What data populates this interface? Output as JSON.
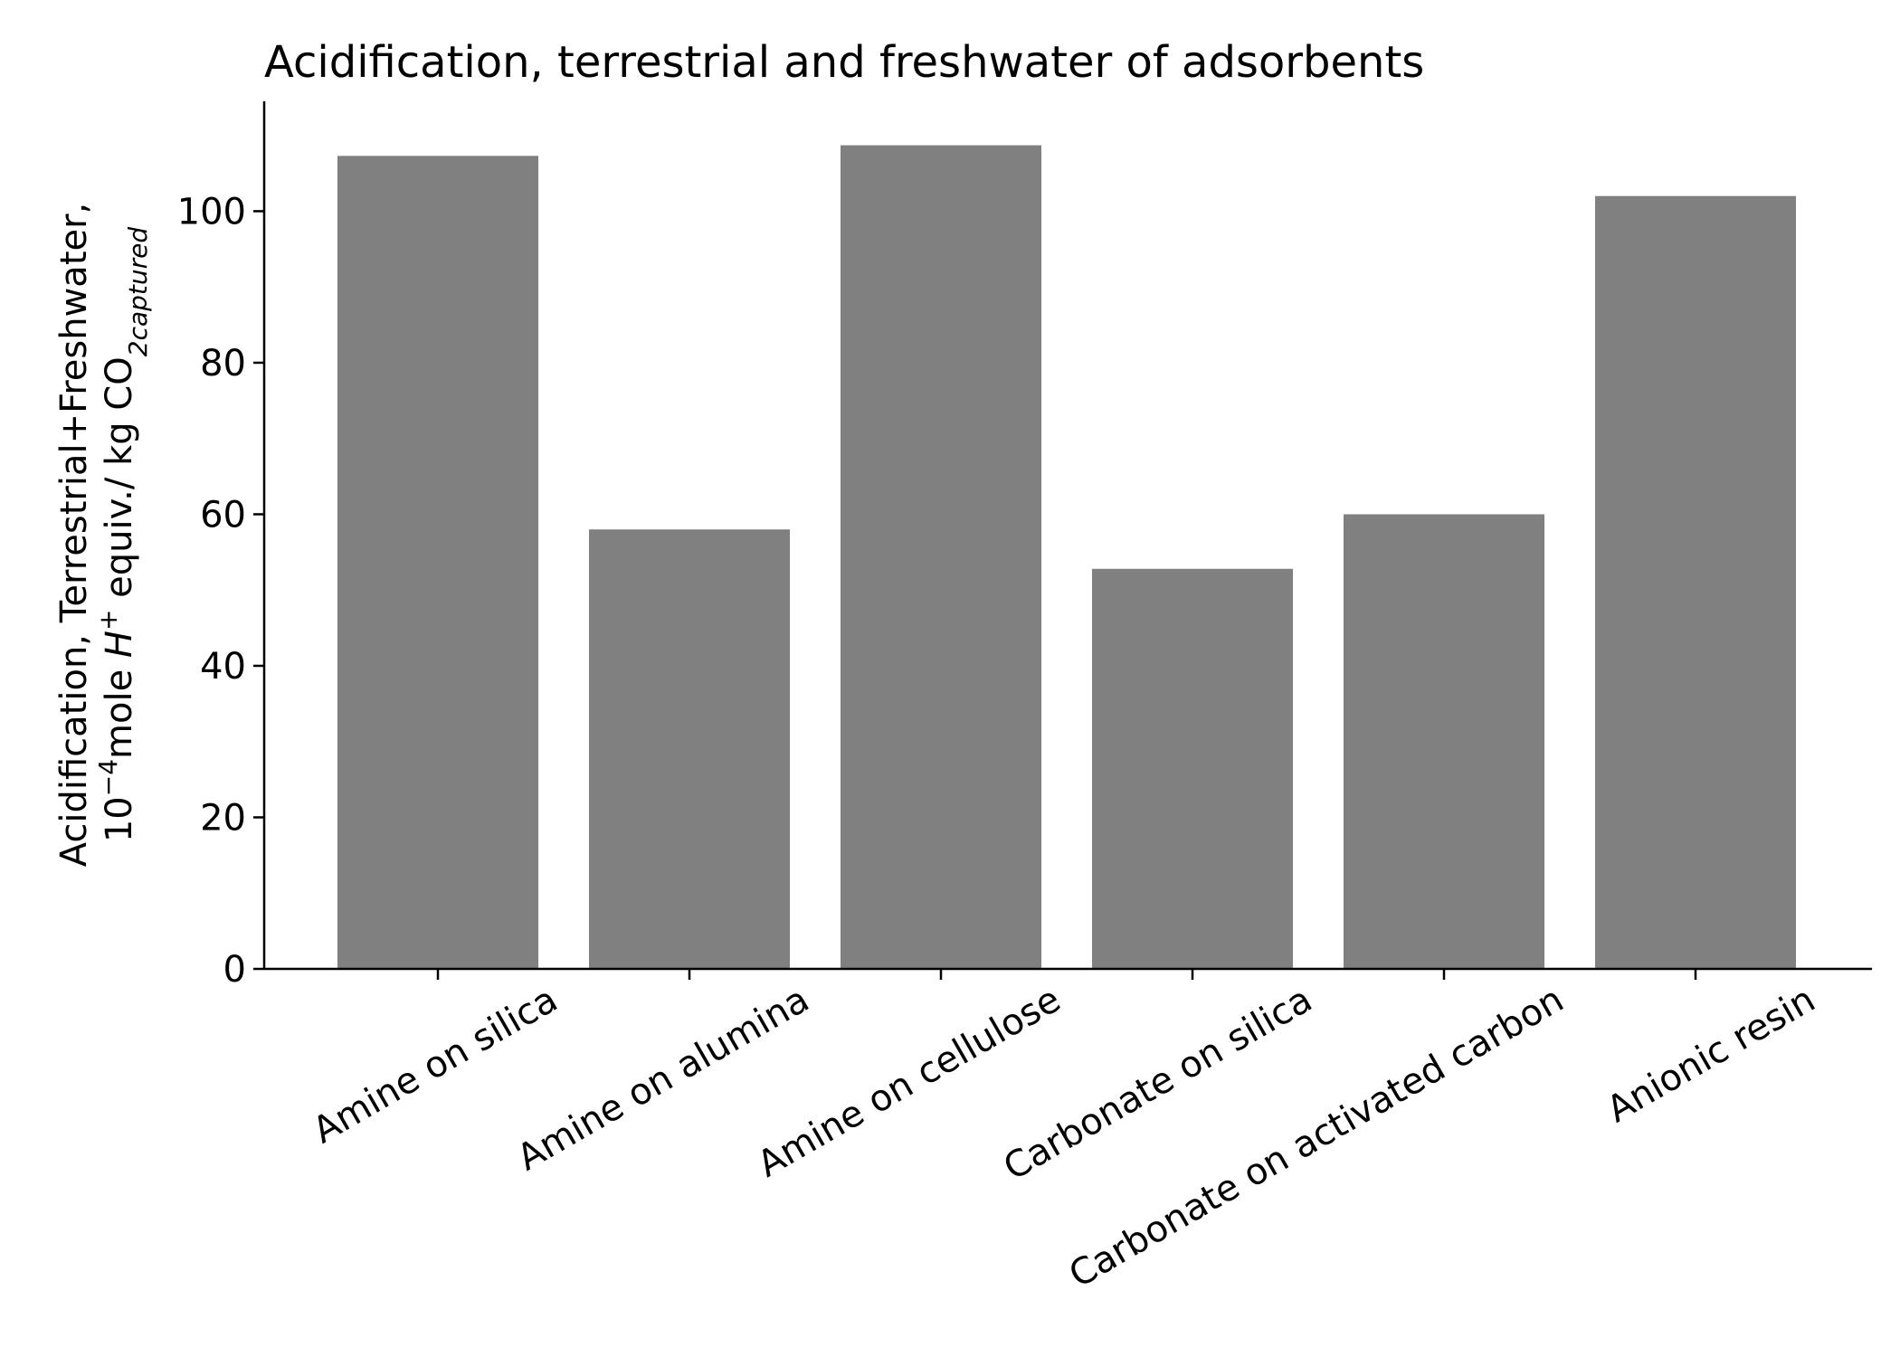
{
  "chart_data": {
    "type": "bar",
    "title": "Acidification, terrestrial and freshwater of adsorbents",
    "ylabel": {
      "line1": "Acidification, Terrestrial+Freshwater,",
      "line2": {
        "base": "10",
        "exp": "−4",
        "mole": "mole ",
        "h": "H",
        "h_sup": "+",
        "unit": " equiv./ kg CO",
        "unit_sub": "2captured"
      }
    },
    "xlabel": "",
    "categories": [
      "Amine on silica",
      "Amine on alumina",
      "Amine on cellulose",
      "Carbonate on silica",
      "Carbonate on activated carbon",
      "Anionic resin"
    ],
    "values": [
      107.3,
      58.0,
      108.7,
      52.8,
      60.0,
      102.0
    ],
    "ylim": [
      0,
      114.5
    ],
    "yticks": [
      0,
      20,
      40,
      60,
      80,
      100
    ],
    "bar_color": "#808080",
    "grid": false,
    "legend": "none"
  }
}
